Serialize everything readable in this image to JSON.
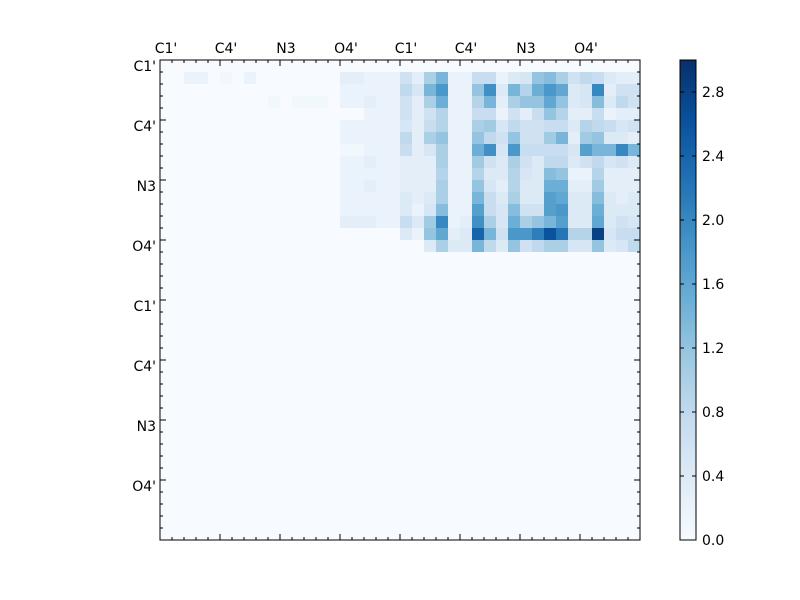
{
  "chart_data": {
    "type": "heatmap",
    "title": "",
    "xlabel": "",
    "ylabel": "",
    "grid": false,
    "x_tick_labels": [
      "C1'",
      "C4'",
      "N3",
      "O4'",
      "C1'",
      "C4'",
      "N3",
      "O4'"
    ],
    "y_tick_labels": [
      "C1'",
      "C4'",
      "N3",
      "O4'",
      "C1'",
      "C4'",
      "N3",
      "O4'"
    ],
    "colorbar": {
      "colormap": "Blues",
      "vmin": 0.0,
      "vmax": 3.0,
      "ticks": [
        "0.0",
        "0.4",
        "0.8",
        "1.2",
        "1.6",
        "2.0",
        "2.4",
        "2.8"
      ],
      "tick_values": [
        0.0,
        0.4,
        0.8,
        1.2,
        1.6,
        2.0,
        2.4,
        2.8
      ]
    },
    "colors": {
      "low": "#f7fbff",
      "high": "#08306b",
      "axes": "#000000"
    },
    "size": 40,
    "matrix": [
      [
        0,
        0,
        0,
        0,
        0,
        0,
        0,
        0,
        0,
        0,
        0,
        0,
        0,
        0,
        0,
        0,
        0,
        0,
        0,
        0,
        0,
        0,
        0,
        0,
        0,
        0,
        0,
        0,
        0,
        0,
        0,
        0,
        0,
        0,
        0,
        0,
        0,
        0,
        0,
        0
      ],
      [
        0,
        0,
        0.2,
        0.2,
        0,
        0.1,
        0,
        0.2,
        0,
        0,
        0,
        0,
        0,
        0,
        0,
        0.3,
        0.3,
        0.2,
        0.2,
        0.2,
        0.6,
        0.3,
        1,
        1.4,
        0.2,
        0.2,
        0.7,
        0.7,
        0.2,
        0.4,
        0.5,
        1.2,
        1.3,
        1,
        0.6,
        0.8,
        0.7,
        0.4,
        0.3,
        0.3
      ],
      [
        0,
        0,
        0,
        0,
        0,
        0,
        0,
        0,
        0,
        0,
        0,
        0,
        0,
        0,
        0,
        0.2,
        0.2,
        0.2,
        0.2,
        0.2,
        0.8,
        0.5,
        1.4,
        1.8,
        0.2,
        0.2,
        1.2,
        1.9,
        0.4,
        1.4,
        0.9,
        1.5,
        1.8,
        1.6,
        0.4,
        0.5,
        2,
        0.3,
        0.6,
        0.6
      ],
      [
        0,
        0,
        0,
        0,
        0,
        0,
        0,
        0,
        0,
        0.1,
        0,
        0.1,
        0.1,
        0.1,
        0,
        0.2,
        0.2,
        0.3,
        0.2,
        0.2,
        0.6,
        0.3,
        1,
        1.5,
        0.2,
        0.2,
        0.9,
        1.4,
        0.3,
        1,
        1.2,
        1.2,
        1.6,
        1.2,
        0.4,
        0.5,
        1.3,
        0.4,
        0.8,
        0.6
      ],
      [
        0,
        0,
        0,
        0,
        0,
        0,
        0,
        0,
        0,
        0,
        0,
        0,
        0,
        0,
        0,
        0,
        0,
        0.2,
        0.2,
        0.2,
        0.6,
        0.3,
        0.6,
        0.9,
        0.2,
        0.2,
        0.7,
        0.7,
        0.2,
        0.6,
        0.3,
        0.7,
        1.2,
        0.9,
        0.3,
        0.3,
        0.7,
        0.2,
        0.3,
        0.3
      ],
      [
        0,
        0,
        0,
        0,
        0,
        0,
        0,
        0,
        0,
        0,
        0,
        0,
        0,
        0,
        0,
        0.2,
        0.2,
        0.2,
        0.2,
        0.2,
        0.5,
        0.3,
        0.7,
        0.9,
        0.2,
        0.2,
        1,
        1.1,
        0.5,
        0.8,
        0.6,
        0.6,
        0.7,
        0.7,
        0.4,
        0.9,
        0.8,
        0.7,
        0.5,
        0.6
      ],
      [
        0,
        0,
        0,
        0,
        0,
        0,
        0,
        0,
        0,
        0,
        0,
        0,
        0,
        0,
        0,
        0.2,
        0.2,
        0.2,
        0.2,
        0.2,
        0.8,
        0.3,
        1,
        1.2,
        0.2,
        0.2,
        1.2,
        0.8,
        0.6,
        1.2,
        0.6,
        0.6,
        1.1,
        1.4,
        0.3,
        1.1,
        1.2,
        0.4,
        0.4,
        0.3
      ],
      [
        0,
        0,
        0,
        0,
        0,
        0,
        0,
        0,
        0,
        0,
        0,
        0,
        0,
        0,
        0,
        0.1,
        0.1,
        0.2,
        0.2,
        0.2,
        0.7,
        0.3,
        0.5,
        1,
        0.2,
        0.2,
        1.5,
        1.9,
        0.5,
        1.8,
        0.7,
        0.7,
        0.7,
        0.7,
        0.5,
        1.7,
        1.4,
        1.4,
        2,
        1.4
      ],
      [
        0,
        0,
        0,
        0,
        0,
        0,
        0,
        0,
        0,
        0,
        0,
        0,
        0,
        0,
        0,
        0.2,
        0.2,
        0.3,
        0.2,
        0.2,
        0.3,
        0.3,
        0.3,
        1,
        0.2,
        0.2,
        1.1,
        0.6,
        0.4,
        1,
        0.6,
        0.4,
        0.8,
        0.8,
        0.4,
        0.6,
        0.8,
        0.5,
        0.6,
        0.4
      ],
      [
        0,
        0,
        0,
        0,
        0,
        0,
        0,
        0,
        0,
        0,
        0,
        0,
        0,
        0,
        0,
        0.2,
        0.2,
        0.2,
        0.2,
        0.2,
        0.3,
        0.3,
        0.3,
        0.9,
        0.2,
        0.2,
        0.9,
        0.4,
        0.4,
        0.9,
        0.5,
        0.4,
        1.3,
        1.2,
        0.2,
        0.2,
        0.9,
        0.3,
        0.3,
        0.3
      ],
      [
        0,
        0,
        0,
        0,
        0,
        0,
        0,
        0,
        0,
        0,
        0,
        0,
        0,
        0,
        0,
        0.2,
        0.2,
        0.3,
        0.2,
        0.2,
        0.3,
        0.3,
        0.3,
        1,
        0.2,
        0.2,
        1.2,
        0.5,
        0.3,
        0.9,
        0.4,
        0.4,
        1.5,
        1.5,
        0.3,
        0.3,
        1.1,
        0.3,
        0.3,
        0.3
      ],
      [
        0,
        0,
        0,
        0,
        0,
        0,
        0,
        0,
        0,
        0,
        0,
        0,
        0,
        0,
        0,
        0.2,
        0.2,
        0.2,
        0.2,
        0.2,
        0.4,
        0.3,
        0.4,
        1,
        0.2,
        0.2,
        1.4,
        0.7,
        0.4,
        1,
        0.4,
        0.4,
        1.7,
        1.6,
        0.4,
        0.4,
        1.3,
        0.4,
        0.3,
        0.4
      ],
      [
        0,
        0,
        0,
        0,
        0,
        0,
        0,
        0,
        0,
        0,
        0,
        0,
        0,
        0,
        0,
        0.2,
        0.2,
        0.2,
        0.2,
        0.2,
        0.4,
        0.2,
        0.5,
        1.3,
        0.2,
        0.2,
        1.7,
        0.7,
        0.5,
        1.3,
        0.6,
        0.6,
        1.7,
        1.8,
        0.4,
        0.4,
        1.5,
        0.4,
        0.4,
        0.4
      ],
      [
        0,
        0,
        0,
        0,
        0,
        0,
        0,
        0,
        0,
        0,
        0,
        0,
        0,
        0,
        0,
        0.3,
        0.3,
        0.3,
        0.2,
        0.2,
        0.7,
        0.4,
        1.1,
        2,
        0.2,
        0.3,
        1.9,
        1,
        0.5,
        1.5,
        1,
        1.2,
        1.4,
        1.7,
        0.4,
        0.4,
        1.6,
        0.4,
        0.6,
        0.5
      ],
      [
        0,
        0,
        0,
        0,
        0,
        0,
        0,
        0,
        0,
        0,
        0,
        0,
        0,
        0,
        0,
        0,
        0,
        0,
        0,
        0,
        0.4,
        0.2,
        1.2,
        1.6,
        0.3,
        0.4,
        2.4,
        1.4,
        0.6,
        1.8,
        1.8,
        2.1,
        2.6,
        2.2,
        0.9,
        0.9,
        2.8,
        0.5,
        0.7,
        0.7
      ],
      [
        0,
        0,
        0,
        0,
        0,
        0,
        0,
        0,
        0,
        0,
        0,
        0,
        0,
        0,
        0,
        0,
        0,
        0,
        0,
        0,
        0,
        0,
        0.4,
        1,
        0.4,
        0.4,
        1.4,
        0.8,
        0.4,
        1.2,
        0.6,
        0.8,
        1,
        1,
        0.5,
        0.5,
        1.2,
        0.4,
        0.5,
        0.8
      ],
      [
        0,
        0,
        0,
        0,
        0,
        0,
        0,
        0,
        0,
        0,
        0,
        0,
        0,
        0,
        0,
        0,
        0,
        0,
        0,
        0,
        0,
        0,
        0,
        0,
        0,
        0,
        0,
        0,
        0,
        0,
        0,
        0,
        0,
        0,
        0,
        0,
        0,
        0,
        0,
        0
      ],
      [
        0,
        0,
        0,
        0,
        0,
        0,
        0,
        0,
        0,
        0,
        0,
        0,
        0,
        0,
        0,
        0,
        0,
        0,
        0,
        0,
        0,
        0,
        0,
        0,
        0,
        0,
        0,
        0,
        0,
        0,
        0,
        0,
        0,
        0,
        0,
        0,
        0,
        0,
        0,
        0
      ],
      [
        0,
        0,
        0,
        0,
        0,
        0,
        0,
        0,
        0,
        0,
        0,
        0,
        0,
        0,
        0,
        0,
        0,
        0,
        0,
        0,
        0,
        0,
        0,
        0,
        0,
        0,
        0,
        0,
        0,
        0,
        0,
        0,
        0,
        0,
        0,
        0,
        0,
        0,
        0,
        0
      ],
      [
        0,
        0,
        0,
        0,
        0,
        0,
        0,
        0,
        0,
        0,
        0,
        0,
        0,
        0,
        0,
        0,
        0,
        0,
        0,
        0,
        0,
        0,
        0,
        0,
        0,
        0,
        0,
        0,
        0,
        0,
        0,
        0,
        0,
        0,
        0,
        0,
        0,
        0,
        0,
        0
      ],
      [
        0,
        0,
        0,
        0,
        0,
        0,
        0,
        0,
        0,
        0,
        0,
        0,
        0,
        0,
        0,
        0,
        0,
        0,
        0,
        0,
        0,
        0,
        0,
        0,
        0,
        0,
        0,
        0,
        0,
        0,
        0,
        0,
        0,
        0,
        0,
        0,
        0,
        0,
        0,
        0
      ],
      [
        0,
        0,
        0,
        0,
        0,
        0,
        0,
        0,
        0,
        0,
        0,
        0,
        0,
        0,
        0,
        0,
        0,
        0,
        0,
        0,
        0,
        0,
        0,
        0,
        0,
        0,
        0,
        0,
        0,
        0,
        0,
        0,
        0,
        0,
        0,
        0,
        0,
        0,
        0,
        0
      ],
      [
        0,
        0,
        0,
        0,
        0,
        0,
        0,
        0,
        0,
        0,
        0,
        0,
        0,
        0,
        0,
        0,
        0,
        0,
        0,
        0,
        0,
        0,
        0,
        0,
        0,
        0,
        0,
        0,
        0,
        0,
        0,
        0,
        0,
        0,
        0,
        0,
        0,
        0,
        0,
        0
      ],
      [
        0,
        0,
        0,
        0,
        0,
        0,
        0,
        0,
        0,
        0,
        0,
        0,
        0,
        0,
        0,
        0,
        0,
        0,
        0,
        0,
        0,
        0,
        0,
        0,
        0,
        0,
        0,
        0,
        0,
        0,
        0,
        0,
        0,
        0,
        0,
        0,
        0,
        0,
        0,
        0
      ],
      [
        0,
        0,
        0,
        0,
        0,
        0,
        0,
        0,
        0,
        0,
        0,
        0,
        0,
        0,
        0,
        0,
        0,
        0,
        0,
        0,
        0,
        0,
        0,
        0,
        0,
        0,
        0,
        0,
        0,
        0,
        0,
        0,
        0,
        0,
        0,
        0,
        0,
        0,
        0,
        0
      ],
      [
        0,
        0,
        0,
        0,
        0,
        0,
        0,
        0,
        0,
        0,
        0,
        0,
        0,
        0,
        0,
        0,
        0,
        0,
        0,
        0,
        0,
        0,
        0,
        0,
        0,
        0,
        0,
        0,
        0,
        0,
        0,
        0,
        0,
        0,
        0,
        0,
        0,
        0,
        0,
        0
      ],
      [
        0,
        0,
        0,
        0,
        0,
        0,
        0,
        0,
        0,
        0,
        0,
        0,
        0,
        0,
        0,
        0,
        0,
        0,
        0,
        0,
        0,
        0,
        0,
        0,
        0,
        0,
        0,
        0,
        0,
        0,
        0,
        0,
        0,
        0,
        0,
        0,
        0,
        0,
        0,
        0
      ],
      [
        0,
        0,
        0,
        0,
        0,
        0,
        0,
        0,
        0,
        0,
        0,
        0,
        0,
        0,
        0,
        0,
        0,
        0,
        0,
        0,
        0,
        0,
        0,
        0,
        0,
        0,
        0,
        0,
        0,
        0,
        0,
        0,
        0,
        0,
        0,
        0,
        0,
        0,
        0,
        0
      ],
      [
        0,
        0,
        0,
        0,
        0,
        0,
        0,
        0,
        0,
        0,
        0,
        0,
        0,
        0,
        0,
        0,
        0,
        0,
        0,
        0,
        0,
        0,
        0,
        0,
        0,
        0,
        0,
        0,
        0,
        0,
        0,
        0,
        0,
        0,
        0,
        0,
        0,
        0,
        0,
        0
      ],
      [
        0,
        0,
        0,
        0,
        0,
        0,
        0,
        0,
        0,
        0,
        0,
        0,
        0,
        0,
        0,
        0,
        0,
        0,
        0,
        0,
        0,
        0,
        0,
        0,
        0,
        0,
        0,
        0,
        0,
        0,
        0,
        0,
        0,
        0,
        0,
        0,
        0,
        0,
        0,
        0
      ],
      [
        0,
        0,
        0,
        0,
        0,
        0,
        0,
        0,
        0,
        0,
        0,
        0,
        0,
        0,
        0,
        0,
        0,
        0,
        0,
        0,
        0,
        0,
        0,
        0,
        0,
        0,
        0,
        0,
        0,
        0,
        0,
        0,
        0,
        0,
        0,
        0,
        0,
        0,
        0,
        0
      ],
      [
        0,
        0,
        0,
        0,
        0,
        0,
        0,
        0,
        0,
        0,
        0,
        0,
        0,
        0,
        0,
        0,
        0,
        0,
        0,
        0,
        0,
        0,
        0,
        0,
        0,
        0,
        0,
        0,
        0,
        0,
        0,
        0,
        0,
        0,
        0,
        0,
        0,
        0,
        0,
        0
      ],
      [
        0,
        0,
        0,
        0,
        0,
        0,
        0,
        0,
        0,
        0,
        0,
        0,
        0,
        0,
        0,
        0,
        0,
        0,
        0,
        0,
        0,
        0,
        0,
        0,
        0,
        0,
        0,
        0,
        0,
        0,
        0,
        0,
        0,
        0,
        0,
        0,
        0,
        0,
        0,
        0
      ],
      [
        0,
        0,
        0,
        0,
        0,
        0,
        0,
        0,
        0,
        0,
        0,
        0,
        0,
        0,
        0,
        0,
        0,
        0,
        0,
        0,
        0,
        0,
        0,
        0,
        0,
        0,
        0,
        0,
        0,
        0,
        0,
        0,
        0,
        0,
        0,
        0,
        0,
        0,
        0,
        0
      ],
      [
        0,
        0,
        0,
        0,
        0,
        0,
        0,
        0,
        0,
        0,
        0,
        0,
        0,
        0,
        0,
        0,
        0,
        0,
        0,
        0,
        0,
        0,
        0,
        0,
        0,
        0,
        0,
        0,
        0,
        0,
        0,
        0,
        0,
        0,
        0,
        0,
        0,
        0,
        0,
        0
      ],
      [
        0,
        0,
        0,
        0,
        0,
        0,
        0,
        0,
        0,
        0,
        0,
        0,
        0,
        0,
        0,
        0,
        0,
        0,
        0,
        0,
        0,
        0,
        0,
        0,
        0,
        0,
        0,
        0,
        0,
        0,
        0,
        0,
        0,
        0,
        0,
        0,
        0,
        0,
        0,
        0
      ],
      [
        0,
        0,
        0,
        0,
        0,
        0,
        0,
        0,
        0,
        0,
        0,
        0,
        0,
        0,
        0,
        0,
        0,
        0,
        0,
        0,
        0,
        0,
        0,
        0,
        0,
        0,
        0,
        0,
        0,
        0,
        0,
        0,
        0,
        0,
        0,
        0,
        0,
        0,
        0,
        0
      ],
      [
        0,
        0,
        0,
        0,
        0,
        0,
        0,
        0,
        0,
        0,
        0,
        0,
        0,
        0,
        0,
        0,
        0,
        0,
        0,
        0,
        0,
        0,
        0,
        0,
        0,
        0,
        0,
        0,
        0,
        0,
        0,
        0,
        0,
        0,
        0,
        0,
        0,
        0,
        0,
        0
      ],
      [
        0,
        0,
        0,
        0,
        0,
        0,
        0,
        0,
        0,
        0,
        0,
        0,
        0,
        0,
        0,
        0,
        0,
        0,
        0,
        0,
        0,
        0,
        0,
        0,
        0,
        0,
        0,
        0,
        0,
        0,
        0,
        0,
        0,
        0,
        0,
        0,
        0,
        0,
        0,
        0
      ],
      [
        0,
        0,
        0,
        0,
        0,
        0,
        0,
        0,
        0,
        0,
        0,
        0,
        0,
        0,
        0,
        0,
        0,
        0,
        0,
        0,
        0,
        0,
        0,
        0,
        0,
        0,
        0,
        0,
        0,
        0,
        0,
        0,
        0,
        0,
        0,
        0,
        0,
        0,
        0,
        0
      ]
    ]
  }
}
